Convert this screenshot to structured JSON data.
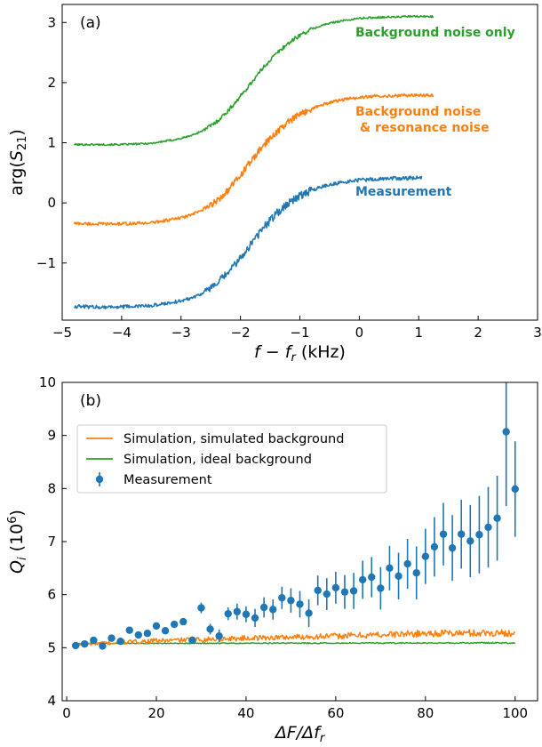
{
  "chart_data": [
    {
      "type": "line",
      "panel_label": "(a)",
      "xlabel": "f − f_r (kHz)",
      "xlabel_parts": {
        "main": "f − f",
        "sub": "r",
        "unit": " (kHz)"
      },
      "ylabel": "arg(S21)",
      "ylabel_parts": {
        "main": "arg(",
        "sub": "S",
        "subsub": "21",
        "end": ")"
      },
      "xlim": [
        -5,
        3
      ],
      "ylim": [
        -1.95,
        3.3
      ],
      "xticks": [
        -5,
        -4,
        -3,
        -2,
        -1,
        0,
        1,
        2,
        3
      ],
      "xtick_labels": [
        "−5",
        "−4",
        "−3",
        "−2",
        "−1",
        "0",
        "1",
        "2",
        "3"
      ],
      "yticks": [
        -1,
        0,
        1,
        2,
        3
      ],
      "ytick_labels": [
        "−1",
        "0",
        "1",
        "2",
        "3"
      ],
      "grid": false,
      "series": [
        {
          "name": "Background noise only",
          "label_lines": [
            "Background noise only"
          ],
          "color": "#2ca02c",
          "x": [
            -4.8,
            -4.5,
            -4.0,
            -3.5,
            -3.0,
            -2.8,
            -2.6,
            -2.4,
            -2.2,
            -2.0,
            -1.8,
            -1.6,
            -1.4,
            -1.2,
            -1.0,
            -0.8,
            -0.6,
            -0.4,
            -0.2,
            0.0,
            0.2,
            0.4,
            0.6,
            0.8,
            1.0,
            1.2,
            1.25
          ],
          "values": [
            0.97,
            0.97,
            0.97,
            0.99,
            1.07,
            1.13,
            1.22,
            1.35,
            1.54,
            1.77,
            2.02,
            2.27,
            2.48,
            2.65,
            2.79,
            2.89,
            2.96,
            3.01,
            3.04,
            3.07,
            3.08,
            3.09,
            3.09,
            3.1,
            3.1,
            3.1,
            3.1
          ],
          "noise": 0.015
        },
        {
          "name": "Background noise & resonance noise",
          "label_lines": [
            "Background noise",
            " & resonance noise"
          ],
          "color": "#ff7f0e",
          "x": [
            -4.8,
            -4.5,
            -4.0,
            -3.5,
            -3.0,
            -2.8,
            -2.6,
            -2.4,
            -2.2,
            -2.0,
            -1.8,
            -1.6,
            -1.4,
            -1.2,
            -1.0,
            -0.8,
            -0.6,
            -0.4,
            -0.2,
            0.0,
            0.2,
            0.4,
            0.6,
            0.8,
            1.0,
            1.2,
            1.25
          ],
          "values": [
            -0.34,
            -0.35,
            -0.35,
            -0.33,
            -0.25,
            -0.19,
            -0.1,
            0.03,
            0.22,
            0.46,
            0.72,
            0.97,
            1.17,
            1.34,
            1.47,
            1.57,
            1.64,
            1.69,
            1.73,
            1.75,
            1.77,
            1.78,
            1.78,
            1.79,
            1.79,
            1.79,
            1.79
          ],
          "noise": 0.025
        },
        {
          "name": "Measurement",
          "label_lines": [
            "Measurement"
          ],
          "color": "#1f77b4",
          "x": [
            -4.8,
            -4.5,
            -4.0,
            -3.5,
            -3.0,
            -2.8,
            -2.6,
            -2.4,
            -2.2,
            -2.0,
            -1.8,
            -1.6,
            -1.4,
            -1.2,
            -1.0,
            -0.8,
            -0.6,
            -0.4,
            -0.2,
            0.0,
            0.2,
            0.4,
            0.6,
            0.8,
            1.0,
            1.05
          ],
          "values": [
            -1.72,
            -1.73,
            -1.73,
            -1.71,
            -1.63,
            -1.57,
            -1.48,
            -1.35,
            -1.15,
            -0.92,
            -0.65,
            -0.4,
            -0.18,
            0.0,
            0.12,
            0.21,
            0.28,
            0.32,
            0.35,
            0.38,
            0.39,
            0.4,
            0.41,
            0.41,
            0.42,
            0.42
          ],
          "noise": 0.03
        }
      ]
    },
    {
      "type": "line+errorbar",
      "panel_label": "(b)",
      "xlabel": "ΔF/Δf_r",
      "xlabel_parts": {
        "main": "ΔF/Δf",
        "sub": "r"
      },
      "ylabel": "Q_i (10^6)",
      "ylabel_parts": {
        "main": "Q",
        "sub": "i",
        "mid": " (10",
        "sup": "6",
        "end": ")"
      },
      "xlim": [
        -1,
        105
      ],
      "ylim": [
        4,
        10
      ],
      "xticks": [
        0,
        20,
        40,
        60,
        80,
        100
      ],
      "xtick_labels": [
        "0",
        "20",
        "40",
        "60",
        "80",
        "100"
      ],
      "yticks": [
        4,
        5,
        6,
        7,
        8,
        9,
        10
      ],
      "ytick_labels": [
        "4",
        "5",
        "6",
        "7",
        "8",
        "9",
        "10"
      ],
      "grid": false,
      "legend_position": "upper-left",
      "series": [
        {
          "name": "Simulation, simulated background",
          "color": "#ff7f0e",
          "x_range": [
            2,
            100
          ],
          "trend_x": [
            2,
            20,
            40,
            60,
            80,
            100
          ],
          "trend_values": [
            5.06,
            5.13,
            5.18,
            5.22,
            5.27,
            5.28
          ],
          "noise": 0.06
        },
        {
          "name": "Simulation, ideal background",
          "color": "#2ca02c",
          "x_range": [
            2,
            100
          ],
          "trend_x": [
            2,
            100
          ],
          "trend_values": [
            5.08,
            5.09
          ],
          "noise": 0.01
        },
        {
          "name": "Measurement",
          "color": "#1f77b4",
          "x": [
            2,
            4,
            6,
            8,
            10,
            12,
            14,
            16,
            18,
            20,
            22,
            24,
            26,
            28,
            30,
            32,
            34,
            36,
            38,
            40,
            42,
            44,
            46,
            48,
            50,
            52,
            54,
            56,
            58,
            60,
            62,
            64,
            66,
            68,
            70,
            72,
            74,
            76,
            78,
            80,
            82,
            84,
            86,
            88,
            90,
            92,
            94,
            96,
            98,
            100
          ],
          "values": [
            5.04,
            5.07,
            5.14,
            5.03,
            5.18,
            5.12,
            5.33,
            5.24,
            5.27,
            5.41,
            5.32,
            5.44,
            5.49,
            5.14,
            5.75,
            5.35,
            5.22,
            5.64,
            5.68,
            5.63,
            5.56,
            5.76,
            5.72,
            5.94,
            5.89,
            5.82,
            5.65,
            6.08,
            6.01,
            6.13,
            6.05,
            6.07,
            6.28,
            6.33,
            6.12,
            6.5,
            6.35,
            6.58,
            6.41,
            6.72,
            6.9,
            7.14,
            6.88,
            7.14,
            7.01,
            7.13,
            7.27,
            7.44,
            9.07,
            7.99
          ],
          "errors": [
            0.02,
            0.03,
            0.03,
            0.04,
            0.04,
            0.04,
            0.04,
            0.05,
            0.05,
            0.05,
            0.05,
            0.06,
            0.06,
            0.07,
            0.1,
            0.1,
            0.12,
            0.12,
            0.15,
            0.15,
            0.17,
            0.19,
            0.19,
            0.21,
            0.23,
            0.25,
            0.26,
            0.28,
            0.3,
            0.3,
            0.32,
            0.34,
            0.36,
            0.38,
            0.4,
            0.42,
            0.44,
            0.47,
            0.5,
            0.52,
            0.56,
            0.59,
            0.62,
            0.65,
            0.68,
            0.73,
            0.76,
            0.8,
            1.4,
            0.9
          ]
        }
      ]
    }
  ]
}
